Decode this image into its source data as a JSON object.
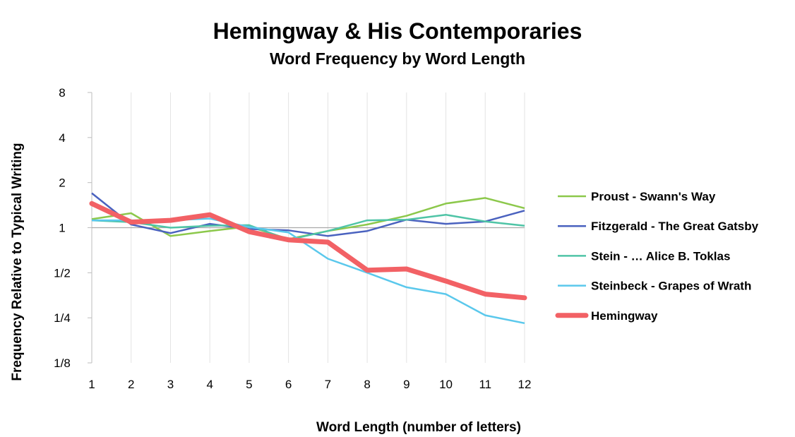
{
  "chart_data": {
    "type": "line",
    "title": "Hemingway & His Contemporaries",
    "subtitle": "Word Frequency by Word Length",
    "xlabel": "Word Length (number of letters)",
    "ylabel": "Frequency Relative to Typical Writing",
    "yscale": "log2",
    "ylim": [
      0.125,
      8
    ],
    "yticks": [
      {
        "value": 0.125,
        "label": "1/8"
      },
      {
        "value": 0.25,
        "label": "1/4"
      },
      {
        "value": 0.5,
        "label": "1/2"
      },
      {
        "value": 1,
        "label": "1"
      },
      {
        "value": 2,
        "label": "2"
      },
      {
        "value": 4,
        "label": "4"
      },
      {
        "value": 8,
        "label": "8"
      }
    ],
    "x": [
      1,
      2,
      3,
      4,
      5,
      6,
      7,
      8,
      9,
      10,
      11,
      12
    ],
    "grid": "vertical",
    "legend_position": "right",
    "series": [
      {
        "name": "Proust - Swann's Way",
        "color": "#8cc84b",
        "width": 2.5,
        "values": [
          1.14,
          1.25,
          0.88,
          0.95,
          1.02,
          0.84,
          0.95,
          1.05,
          1.2,
          1.45,
          1.58,
          1.35
        ]
      },
      {
        "name": "Fitzgerald - The Great Gatsby",
        "color": "#4a62bf",
        "width": 2.5,
        "values": [
          1.7,
          1.05,
          0.92,
          1.06,
          0.98,
          0.96,
          0.88,
          0.95,
          1.13,
          1.06,
          1.1,
          1.3
        ]
      },
      {
        "name": "Stein - … Alice B. Toklas",
        "color": "#4fc4a6",
        "width": 2.5,
        "values": [
          1.12,
          1.09,
          1.0,
          1.03,
          1.04,
          0.83,
          0.95,
          1.12,
          1.13,
          1.22,
          1.1,
          1.03
        ]
      },
      {
        "name": "Steinbeck - Grapes of Wrath",
        "color": "#5ac8ec",
        "width": 2.5,
        "values": [
          1.12,
          1.12,
          1.12,
          1.15,
          1.01,
          0.93,
          0.62,
          0.5,
          0.4,
          0.36,
          0.26,
          0.23
        ]
      },
      {
        "name": "Hemingway",
        "color": "#f26165",
        "width": 7,
        "values": [
          1.45,
          1.09,
          1.12,
          1.22,
          0.94,
          0.83,
          0.8,
          0.52,
          0.53,
          0.44,
          0.36,
          0.34
        ]
      }
    ]
  }
}
